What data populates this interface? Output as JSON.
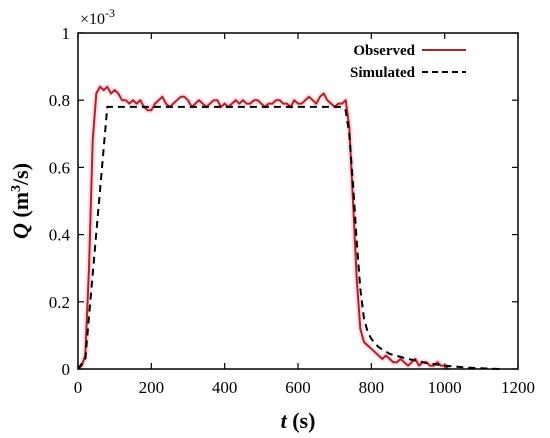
{
  "chart_data": {
    "type": "line",
    "xlabel_symbol": "t",
    "xlabel_unit": "(s)",
    "ylabel_symbol": "Q",
    "ylabel_unit": "(m",
    "ylabel_exp": "3",
    "ylabel_unit_tail": "/s)",
    "scale_base": "×10",
    "scale_exp": "-3",
    "xlim": [
      0,
      1200
    ],
    "ylim": [
      0,
      1
    ],
    "x_ticks": [
      0,
      200,
      400,
      600,
      800,
      1000,
      1200
    ],
    "x_tick_labels": [
      "0",
      "200",
      "400",
      "600",
      "800",
      "1000",
      "1200"
    ],
    "y_ticks": [
      0,
      0.2,
      0.4,
      0.6,
      0.8,
      1
    ],
    "y_tick_labels": [
      "0",
      "0.2",
      "0.4",
      "0.6",
      "0.8",
      "1"
    ],
    "legend_position": "top-right",
    "series": [
      {
        "name": "Observed",
        "color": "#b22222",
        "style": "solid",
        "x": [
          0,
          10,
          20,
          30,
          40,
          50,
          60,
          70,
          80,
          90,
          100,
          110,
          120,
          130,
          140,
          150,
          160,
          170,
          180,
          190,
          200,
          210,
          220,
          230,
          240,
          250,
          260,
          270,
          280,
          290,
          300,
          310,
          320,
          330,
          340,
          350,
          360,
          370,
          380,
          390,
          400,
          410,
          420,
          430,
          440,
          450,
          460,
          470,
          480,
          490,
          500,
          510,
          520,
          530,
          540,
          550,
          560,
          570,
          580,
          590,
          600,
          610,
          620,
          630,
          640,
          650,
          660,
          670,
          680,
          690,
          700,
          710,
          720,
          730,
          740,
          750,
          760,
          770,
          780,
          790,
          800,
          810,
          820,
          830,
          840,
          850,
          860,
          870,
          880,
          890,
          900,
          910,
          920,
          930,
          940,
          950,
          960,
          970,
          980,
          990,
          1000,
          1010
        ],
        "y": [
          0.0,
          0.01,
          0.04,
          0.3,
          0.68,
          0.82,
          0.84,
          0.83,
          0.84,
          0.82,
          0.83,
          0.82,
          0.8,
          0.8,
          0.79,
          0.8,
          0.79,
          0.8,
          0.78,
          0.77,
          0.77,
          0.79,
          0.8,
          0.81,
          0.79,
          0.78,
          0.79,
          0.8,
          0.81,
          0.81,
          0.8,
          0.78,
          0.79,
          0.8,
          0.79,
          0.78,
          0.79,
          0.8,
          0.8,
          0.78,
          0.79,
          0.78,
          0.79,
          0.8,
          0.79,
          0.8,
          0.79,
          0.79,
          0.8,
          0.8,
          0.79,
          0.78,
          0.79,
          0.79,
          0.8,
          0.8,
          0.79,
          0.79,
          0.78,
          0.8,
          0.79,
          0.79,
          0.8,
          0.81,
          0.8,
          0.79,
          0.81,
          0.82,
          0.8,
          0.79,
          0.78,
          0.79,
          0.79,
          0.8,
          0.72,
          0.5,
          0.27,
          0.12,
          0.08,
          0.07,
          0.06,
          0.05,
          0.04,
          0.03,
          0.04,
          0.03,
          0.02,
          0.02,
          0.03,
          0.02,
          0.01,
          0.02,
          0.03,
          0.01,
          0.02,
          0.02,
          0.01,
          0.01,
          0.02,
          0.01,
          0.01,
          0.0
        ]
      },
      {
        "name": "Simulated",
        "color": "#000000",
        "style": "dashed",
        "x": [
          0,
          20,
          80,
          720,
          730,
          740,
          750,
          760,
          770,
          780,
          790,
          800,
          820,
          850,
          900,
          950,
          1000,
          1050,
          1100,
          1150
        ],
        "y": [
          0.0,
          0.03,
          0.78,
          0.78,
          0.77,
          0.7,
          0.55,
          0.38,
          0.24,
          0.15,
          0.11,
          0.09,
          0.065,
          0.045,
          0.03,
          0.018,
          0.01,
          0.005,
          0.002,
          0.0
        ]
      }
    ]
  }
}
